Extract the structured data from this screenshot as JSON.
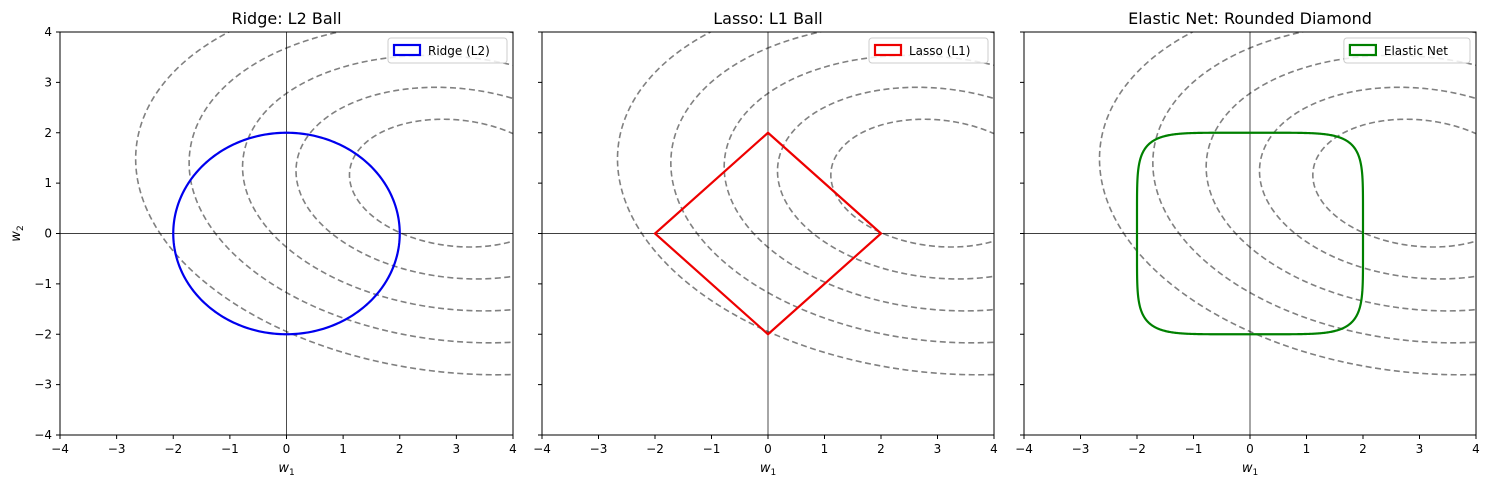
{
  "chart_data": [
    {
      "type": "line",
      "title": "Ridge: L2 Ball",
      "xlabel": "w1",
      "ylabel": "w2",
      "xlim": [
        -4,
        4
      ],
      "ylim": [
        -4,
        4
      ],
      "xticks": [
        -4,
        -3,
        -2,
        -1,
        0,
        1,
        2,
        3,
        4
      ],
      "yticks": [
        -4,
        -3,
        -2,
        -1,
        0,
        1,
        2,
        3,
        4
      ],
      "grid": false,
      "legend_position": "top-right",
      "constraint": {
        "name": "Ridge (L2)",
        "shape": "L2 ball",
        "radius": 2,
        "color": "#0000ee"
      },
      "contours": {
        "center": [
          3,
          1
        ],
        "color": "#808080",
        "style": "dashed",
        "levels": [
          2,
          3,
          4,
          5,
          6
        ]
      },
      "axes_lines": true
    },
    {
      "type": "line",
      "title": "Lasso: L1 Ball",
      "xlabel": "w1",
      "ylabel": "",
      "xlim": [
        -4,
        4
      ],
      "ylim": [
        -4,
        4
      ],
      "xticks": [
        -4,
        -3,
        -2,
        -1,
        0,
        1,
        2,
        3,
        4
      ],
      "yticks": [
        -4,
        -3,
        -2,
        -1,
        0,
        1,
        2,
        3,
        4
      ],
      "grid": false,
      "legend_position": "top-right",
      "constraint": {
        "name": "Lasso (L1)",
        "shape": "L1 ball",
        "radius": 2,
        "color": "#ee0000"
      },
      "contours": {
        "center": [
          3,
          1
        ],
        "color": "#808080",
        "style": "dashed",
        "levels": [
          2,
          3,
          4,
          5,
          6
        ]
      },
      "axes_lines": true
    },
    {
      "type": "line",
      "title": "Elastic Net: Rounded Diamond",
      "xlabel": "w1",
      "ylabel": "",
      "xlim": [
        -4,
        4
      ],
      "ylim": [
        -4,
        4
      ],
      "xticks": [
        -4,
        -3,
        -2,
        -1,
        0,
        1,
        2,
        3,
        4
      ],
      "yticks": [
        -4,
        -3,
        -2,
        -1,
        0,
        1,
        2,
        3,
        4
      ],
      "grid": false,
      "legend_position": "top-right",
      "constraint": {
        "name": "Elastic Net",
        "shape": "rounded square",
        "radius": 2,
        "color": "#008000"
      },
      "contours": {
        "center": [
          3,
          1
        ],
        "color": "#808080",
        "style": "dashed",
        "levels": [
          2,
          3,
          4,
          5,
          6
        ]
      },
      "axes_lines": true
    }
  ]
}
